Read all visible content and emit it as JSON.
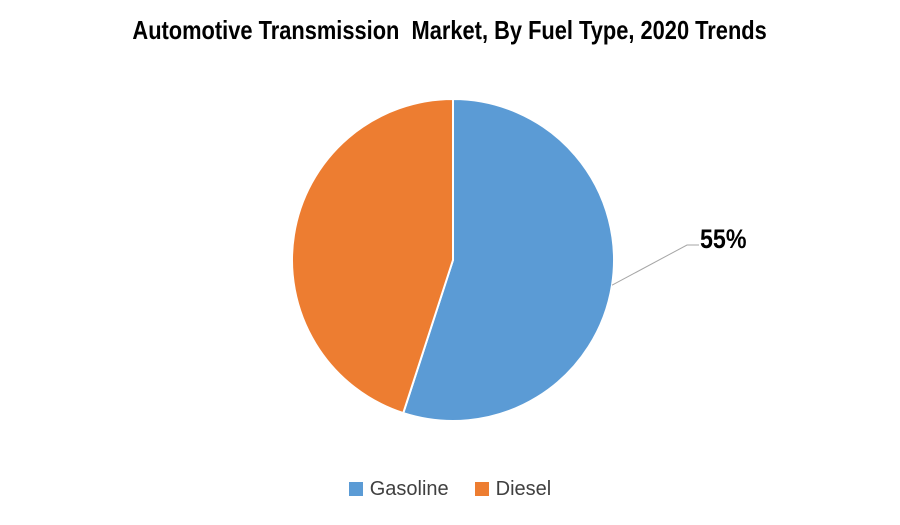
{
  "chart_data": {
    "type": "pie",
    "title": "Automotive Transmission  Market, By Fuel Type, 2020 Trends",
    "categories": [
      "Gasoline",
      "Diesel"
    ],
    "values": [
      55,
      45
    ],
    "slices": [
      {
        "label": "Gasoline",
        "value": 55,
        "percent_text": "55%",
        "color": "#5B9BD5"
      },
      {
        "label": "Diesel",
        "value": 45,
        "percent_text": "45%",
        "color": "#ED7D31"
      }
    ],
    "start_angle_deg": 0,
    "direction": "clockwise",
    "data_labels": [
      {
        "slice": "Gasoline",
        "text": "55%"
      }
    ],
    "legend": {
      "position": "bottom",
      "entries": [
        "Gasoline",
        "Diesel"
      ]
    },
    "colors": {
      "background": "#FFFFFF",
      "title_text": "#000000",
      "label_text": "#000000",
      "legend_text": "#404040",
      "leader_line": "#A6A6A6",
      "slice_border": "#FFFFFF"
    }
  }
}
